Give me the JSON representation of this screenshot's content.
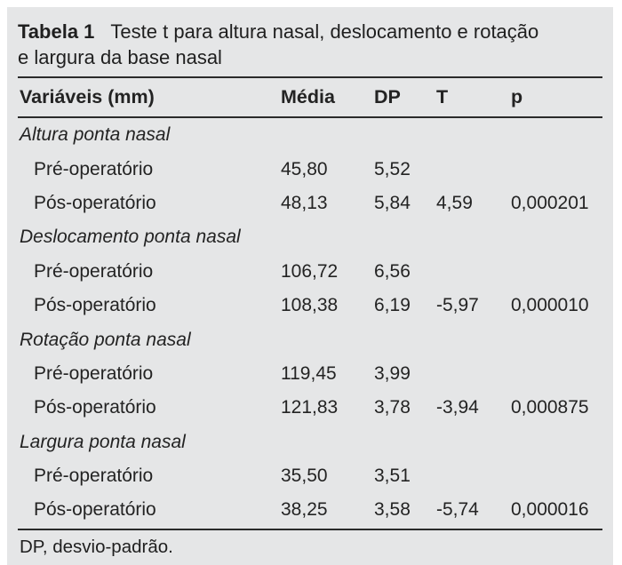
{
  "colors": {
    "page_background": "#ffffff",
    "panel_background": "#e5e6e7",
    "text": "#232323",
    "rule": "#2a2a2a"
  },
  "table": {
    "label": "Tabela 1",
    "title_line1": "Teste t para altura nasal, deslocamento e rotação",
    "title_line2": "e largura da base nasal",
    "columns": [
      "Variáveis (mm)",
      "Média",
      "DP",
      "T",
      "p"
    ],
    "sections": [
      {
        "name": "Altura ponta nasal",
        "rows": [
          {
            "label": "Pré-operatório",
            "media": "45,80",
            "dp": "5,52",
            "t": "",
            "p": ""
          },
          {
            "label": "Pós-operatório",
            "media": "48,13",
            "dp": "5,84",
            "t": "4,59",
            "p": "0,000201"
          }
        ]
      },
      {
        "name": "Deslocamento ponta nasal",
        "rows": [
          {
            "label": "Pré-operatório",
            "media": "106,72",
            "dp": "6,56",
            "t": "",
            "p": ""
          },
          {
            "label": "Pós-operatório",
            "media": "108,38",
            "dp": "6,19",
            "t": "-5,97",
            "p": "0,000010"
          }
        ]
      },
      {
        "name": "Rotação ponta nasal",
        "rows": [
          {
            "label": "Pré-operatório",
            "media": "119,45",
            "dp": "3,99",
            "t": "",
            "p": ""
          },
          {
            "label": "Pós-operatório",
            "media": "121,83",
            "dp": "3,78",
            "t": "-3,94",
            "p": "0,000875"
          }
        ]
      },
      {
        "name": "Largura ponta nasal",
        "rows": [
          {
            "label": "Pré-operatório",
            "media": "35,50",
            "dp": "3,51",
            "t": "",
            "p": ""
          },
          {
            "label": "Pós-operatório",
            "media": "38,25",
            "dp": "3,58",
            "t": "-5,74",
            "p": "0,000016"
          }
        ]
      }
    ],
    "footnote": "DP, desvio-padrão."
  },
  "chart_data": {
    "type": "table",
    "title": "Tabela 1 Teste t para altura nasal, deslocamento e rotação e largura da base nasal",
    "columns": [
      "Variáveis (mm)",
      "Média",
      "DP",
      "T",
      "p"
    ],
    "rows": [
      [
        "Altura ponta nasal",
        "",
        "",
        "",
        ""
      ],
      [
        "Pré-operatório",
        "45,80",
        "5,52",
        "",
        ""
      ],
      [
        "Pós-operatório",
        "48,13",
        "5,84",
        "4,59",
        "0,000201"
      ],
      [
        "Deslocamento ponta nasal",
        "",
        "",
        "",
        ""
      ],
      [
        "Pré-operatório",
        "106,72",
        "6,56",
        "",
        ""
      ],
      [
        "Pós-operatório",
        "108,38",
        "6,19",
        "-5,97",
        "0,000010"
      ],
      [
        "Rotação ponta nasal",
        "",
        "",
        "",
        ""
      ],
      [
        "Pré-operatório",
        "119,45",
        "3,99",
        "",
        ""
      ],
      [
        "Pós-operatório",
        "121,83",
        "3,78",
        "-3,94",
        "0,000875"
      ],
      [
        "Largura ponta nasal",
        "",
        "",
        "",
        ""
      ],
      [
        "Pré-operatório",
        "35,50",
        "3,51",
        "",
        ""
      ],
      [
        "Pós-operatório",
        "38,25",
        "3,58",
        "-5,74",
        "0,000016"
      ]
    ],
    "footnote": "DP, desvio-padrão."
  }
}
